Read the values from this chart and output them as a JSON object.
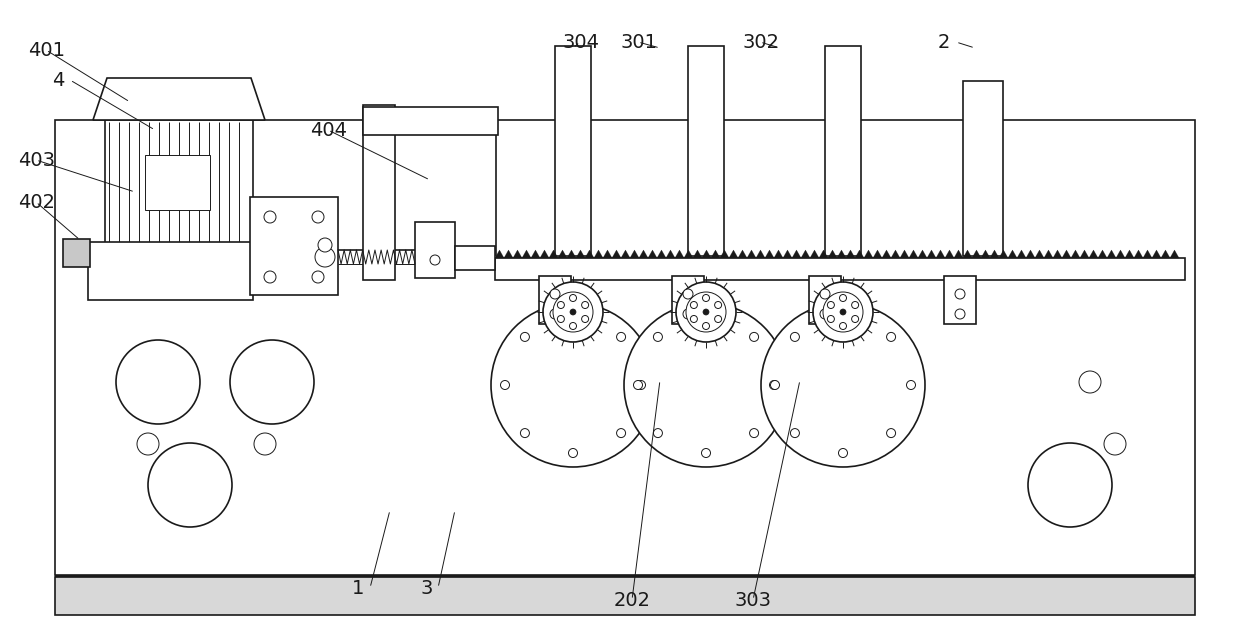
{
  "background_color": "#ffffff",
  "line_color": "#1a1a1a",
  "lw": 1.2,
  "tlw": 0.7,
  "fig_width": 12.39,
  "fig_height": 6.4
}
